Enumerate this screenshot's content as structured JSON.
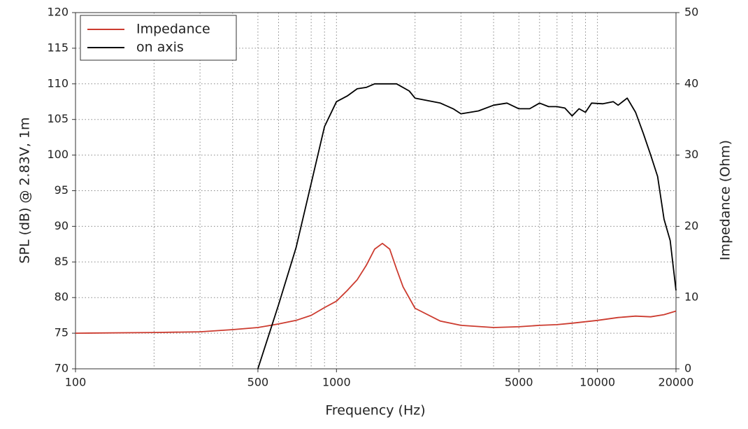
{
  "chart_data": {
    "type": "line",
    "xlabel": "Frequency (Hz)",
    "ylabel": "SPL (dB) @ 2.83V, 1m",
    "y2label": "Impedance (Ohm)",
    "log_x": true,
    "grid": true,
    "legend": "upper left",
    "xlim": [
      100,
      20000
    ],
    "xticks": [
      100,
      500,
      1000,
      5000,
      10000,
      20000
    ],
    "xgrid": [
      200,
      300,
      400,
      600,
      700,
      800,
      900,
      2000,
      3000,
      4000,
      6000,
      7000,
      8000,
      9000
    ],
    "ylim": [
      70,
      120
    ],
    "yticks": [
      70,
      75,
      80,
      85,
      90,
      95,
      100,
      105,
      110,
      115,
      120
    ],
    "y2lim": [
      0,
      50
    ],
    "y2ticks": [
      0,
      10,
      20,
      30,
      40,
      50
    ],
    "series": [
      {
        "name": "Impedance",
        "color": "#cc3b2f",
        "axis": "y2",
        "x": [
          100,
          200,
          300,
          400,
          500,
          600,
          700,
          800,
          900,
          1000,
          1100,
          1200,
          1300,
          1400,
          1500,
          1600,
          1700,
          1800,
          2000,
          2500,
          3000,
          4000,
          5000,
          6000,
          7000,
          8000,
          10000,
          12000,
          14000,
          16000,
          18000,
          20000
        ],
        "values": [
          5,
          5.1,
          5.2,
          5.5,
          5.8,
          6.3,
          6.8,
          7.5,
          8.6,
          9.5,
          11,
          12.5,
          14.5,
          16.8,
          17.6,
          16.8,
          14,
          11.5,
          8.5,
          6.7,
          6.1,
          5.8,
          5.9,
          6.1,
          6.2,
          6.4,
          6.8,
          7.2,
          7.4,
          7.3,
          7.6,
          8.1
        ]
      },
      {
        "name": "on axis",
        "color": "#000000",
        "x": [
          500,
          600,
          700,
          800,
          900,
          1000,
          1100,
          1200,
          1300,
          1400,
          1600,
          1700,
          1900,
          2000,
          2500,
          2800,
          3000,
          3500,
          4000,
          4500,
          5000,
          5500,
          6000,
          6500,
          7000,
          7500,
          8000,
          8500,
          9000,
          9500,
          10500,
          11500,
          12000,
          13000,
          14000,
          15000,
          16000,
          17000,
          18000,
          19000,
          20000
        ],
        "values": [
          70,
          79,
          87,
          96,
          104,
          107.5,
          108.3,
          109.3,
          109.5,
          110,
          110,
          110,
          109,
          108,
          107.3,
          106.5,
          105.8,
          106.2,
          107,
          107.3,
          106.5,
          106.5,
          107.3,
          106.8,
          106.8,
          106.6,
          105.5,
          106.5,
          106,
          107.3,
          107.2,
          107.5,
          107,
          108,
          106,
          103,
          100,
          97,
          91,
          88,
          81
        ]
      }
    ]
  }
}
